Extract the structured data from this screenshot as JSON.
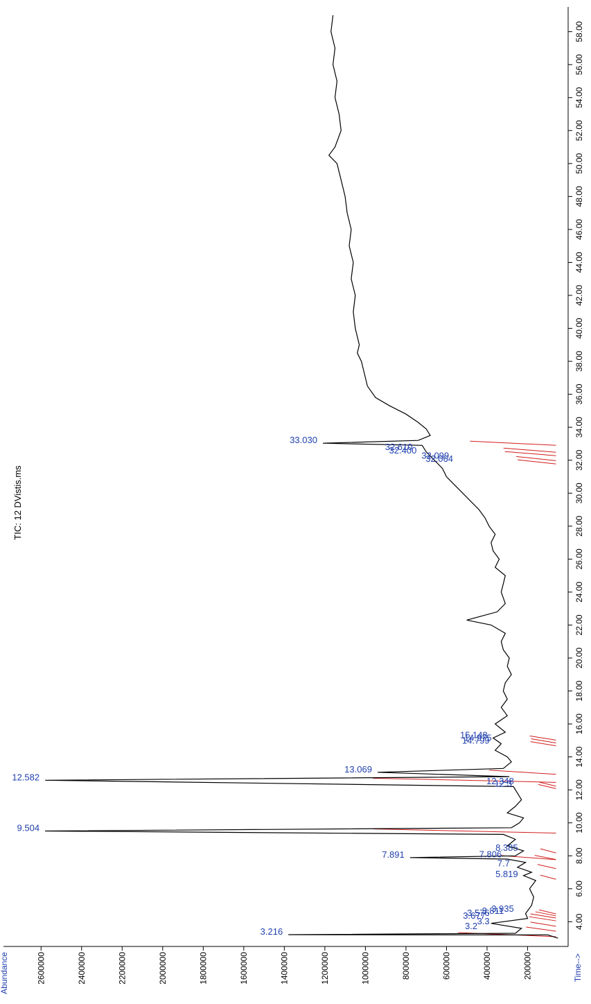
{
  "chart_data": {
    "type": "line",
    "title": "TIC: 12 DVistis.ms",
    "xlabel": "Time-->",
    "ylabel": "Abundance",
    "xlim": [
      2.5,
      59.5
    ],
    "ylim": [
      0,
      2700000
    ],
    "x_ticks": [
      4,
      6,
      8,
      10,
      12,
      14,
      16,
      18,
      20,
      22,
      24,
      26,
      28,
      30,
      32,
      34,
      36,
      38,
      40,
      42,
      44,
      46,
      48,
      50,
      52,
      54,
      56,
      58
    ],
    "x_tick_labels": [
      "4.00",
      "6.00",
      "8.00",
      "10.00",
      "12.00",
      "14.00",
      "16.00",
      "18.00",
      "20.00",
      "22.00",
      "24.00",
      "26.00",
      "28.00",
      "30.00",
      "32.00",
      "34.00",
      "36.00",
      "38.00",
      "40.00",
      "42.00",
      "44.00",
      "46.00",
      "48.00",
      "50.00",
      "52.00",
      "54.00",
      "56.00",
      "58.00"
    ],
    "y_ticks": [
      200000,
      400000,
      600000,
      800000,
      1000000,
      1200000,
      1400000,
      1600000,
      1800000,
      2000000,
      2200000,
      2400000,
      2600000
    ],
    "y_tick_labels": [
      "200000",
      "400000",
      "600000",
      "800000",
      "1000000",
      "1200000",
      "1400000",
      "1600000",
      "1800000",
      "2000000",
      "2200000",
      "2400000",
      "2600000"
    ],
    "series": [
      {
        "x": [
          3.0,
          3.2,
          3.216,
          3.3,
          3.6,
          3.9,
          4.2,
          4.5,
          5.0,
          5.5,
          6.0,
          6.5,
          6.8,
          7.0,
          7.3,
          7.6,
          7.8,
          7.891,
          8.0,
          8.3,
          8.6,
          9.0,
          9.3,
          9.504,
          9.7,
          10.0,
          10.3,
          10.6,
          11.0,
          11.4,
          11.8,
          12.2,
          12.582,
          12.8,
          13.069,
          13.3,
          13.7,
          14.0,
          14.4,
          14.8,
          15.148,
          15.5,
          16.0,
          16.5,
          17.0,
          17.5,
          18.0,
          18.5,
          19.0,
          19.5,
          20.0,
          20.5,
          21.0,
          21.5,
          22.0,
          22.3,
          22.8,
          23.3,
          24.0,
          24.5,
          25.0,
          25.5,
          26.0,
          26.5,
          27.0,
          27.5,
          28.0,
          28.5,
          29.0,
          29.5,
          30.0,
          30.5,
          31.0,
          31.5,
          32.0,
          32.5,
          32.9,
          33.03,
          33.2,
          33.5,
          33.9,
          34.3,
          34.8,
          35.3,
          35.8,
          36.5,
          37.0,
          37.5,
          38.0,
          38.5,
          39.0,
          40.0,
          41.0,
          42.0,
          43.0,
          44.0,
          45.0,
          46.0,
          47.0,
          48.0,
          49.0,
          50.0,
          50.5,
          51.0,
          52.0,
          53.0,
          54.0,
          55.0,
          56.0,
          57.0,
          58.0,
          59.0
        ],
        "y": [
          50000,
          100000,
          1380000,
          260000,
          230000,
          380000,
          200000,
          210000,
          180000,
          170000,
          190000,
          160000,
          220000,
          180000,
          250000,
          210000,
          300000,
          780000,
          260000,
          220000,
          300000,
          260000,
          320000,
          2580000,
          280000,
          240000,
          220000,
          300000,
          260000,
          230000,
          250000,
          270000,
          2580000,
          290000,
          940000,
          320000,
          280000,
          300000,
          360000,
          330000,
          370000,
          310000,
          360000,
          300000,
          330000,
          300000,
          320000,
          310000,
          280000,
          300000,
          290000,
          320000,
          330000,
          310000,
          380000,
          500000,
          350000,
          310000,
          330000,
          320000,
          310000,
          360000,
          340000,
          370000,
          380000,
          360000,
          390000,
          410000,
          440000,
          480000,
          520000,
          560000,
          600000,
          620000,
          660000,
          700000,
          720000,
          1210000,
          740000,
          680000,
          700000,
          740000,
          800000,
          880000,
          950000,
          990000,
          1000000,
          1010000,
          1020000,
          1040000,
          1030000,
          1050000,
          1060000,
          1050000,
          1070000,
          1060000,
          1080000,
          1070000,
          1090000,
          1100000,
          1120000,
          1140000,
          1180000,
          1150000,
          1120000,
          1130000,
          1150000,
          1140000,
          1160000,
          1150000,
          1170000,
          1160000
        ]
      }
    ],
    "peak_labels": [
      {
        "text": "3.216",
        "x": 3.216,
        "y": 1380000
      },
      {
        "text": "3.2",
        "x": 3.55,
        "y": 420000
      },
      {
        "text": "3.3",
        "x": 3.85,
        "y": 360000
      },
      {
        "text": "3.677",
        "x": 4.18,
        "y": 380000
      },
      {
        "text": "3.576",
        "x": 4.35,
        "y": 360000
      },
      {
        "text": "3.811",
        "x": 4.48,
        "y": 290000
      },
      {
        "text": "3.935",
        "x": 4.6,
        "y": 240000
      },
      {
        "text": "5.819",
        "x": 6.7,
        "y": 220000
      },
      {
        "text": "7.7",
        "x": 7.35,
        "y": 260000
      },
      {
        "text": "7.891",
        "x": 7.891,
        "y": 780000
      },
      {
        "text": "7.806",
        "x": 7.9,
        "y": 300000
      },
      {
        "text": "8.385",
        "x": 8.3,
        "y": 220000
      },
      {
        "text": "9.504",
        "x": 9.504,
        "y": 2580000
      },
      {
        "text": "12.582",
        "x": 12.582,
        "y": 2580000
      },
      {
        "text": "12.3",
        "x": 12.2,
        "y": 250000
      },
      {
        "text": "12.348",
        "x": 12.35,
        "y": 240000
      },
      {
        "text": "13.069",
        "x": 13.069,
        "y": 940000
      },
      {
        "text": "14.799",
        "x": 14.799,
        "y": 360000
      },
      {
        "text": "14.975",
        "x": 14.975,
        "y": 350000
      },
      {
        "text": "15.148",
        "x": 15.148,
        "y": 370000
      },
      {
        "text": "33.030",
        "x": 33.03,
        "y": 1210000
      },
      {
        "text": "32.610",
        "x": 32.61,
        "y": 740000
      },
      {
        "text": "32.400",
        "x": 32.4,
        "y": 720000
      },
      {
        "text": "32.099",
        "x": 32.1,
        "y": 560000
      },
      {
        "text": "32.064",
        "x": 31.9,
        "y": 540000
      }
    ]
  }
}
